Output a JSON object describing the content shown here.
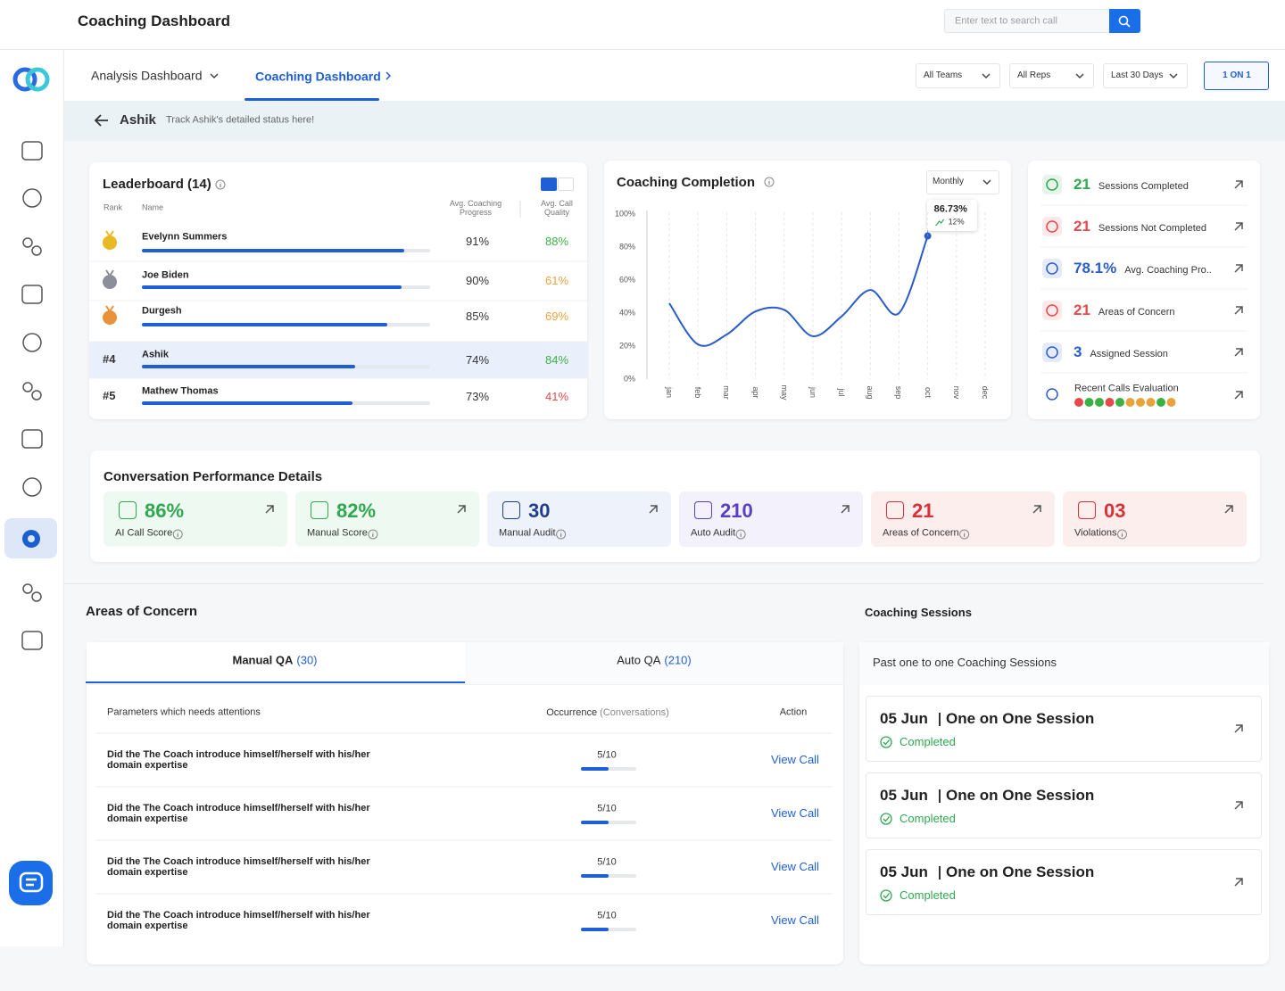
{
  "header": {
    "title": "Coaching Dashboard",
    "search_placeholder": "Enter text to search call"
  },
  "nav_tabs": [
    "Analysis Dashboard",
    "Coaching Dashboard"
  ],
  "filters": [
    "All Teams",
    "All Reps",
    "Last 30 Days"
  ],
  "action_button": "1 ON 1",
  "breadcrumb": {
    "name": "Ashik",
    "subtitle": "Track Ashik's detailed status here!"
  },
  "leaderboard": {
    "title": "Leaderboard (14)",
    "columns": [
      "Rank",
      "Name",
      "Avg. Coaching Progress",
      "Avg. Call Quality"
    ],
    "rows": [
      {
        "medal": "#e8b923",
        "name": "Evelynn Summers",
        "progress": 91,
        "progress_label": "91%",
        "quality": 88,
        "quality_label": "88%",
        "quality_color": "#3cb043"
      },
      {
        "medal": "#8a8f99",
        "name": "Joe Biden",
        "progress": 90,
        "progress_label": "90%",
        "quality": 61,
        "quality_label": "61%",
        "quality_color": "#e8a33d"
      },
      {
        "medal": "#e8923a",
        "name": "Durgesh",
        "progress": 85,
        "progress_label": "85%",
        "quality": 69,
        "quality_label": "69%",
        "quality_color": "#e8a33d"
      },
      {
        "rank": "#4",
        "name": "Ashik",
        "progress": 74,
        "progress_label": "74%",
        "quality": 84,
        "quality_label": "84%",
        "quality_color": "#3cb043",
        "highlighted": true
      },
      {
        "rank": "#5",
        "name": "Mathew Thomas",
        "progress": 73,
        "progress_label": "73%",
        "quality": 41,
        "quality_label": "41%",
        "quality_color": "#e5484d"
      }
    ]
  },
  "coaching_completion": {
    "type": "line",
    "title": "Coaching Completion",
    "period": "Monthly",
    "categories": [
      "jan",
      "feb",
      "mar",
      "apr",
      "may",
      "jun",
      "jul",
      "aug",
      "sep",
      "oct",
      "nov",
      "dec"
    ],
    "values": [
      46,
      21,
      27,
      41,
      42,
      26,
      38,
      54,
      40,
      86.73,
      null,
      null
    ],
    "value_labels": [
      null,
      null,
      null,
      null,
      null,
      null,
      null,
      null,
      null,
      "86.73%",
      null,
      null
    ],
    "change": 12,
    "change_label": "12%",
    "color": "#2a5cc9",
    "ylim": [
      0,
      100
    ],
    "yticks": [
      {
        "value": 0,
        "label": "0%"
      },
      {
        "value": 20,
        "label": "20%"
      },
      {
        "value": 40,
        "label": "40%"
      },
      {
        "value": 60,
        "label": "60%"
      },
      {
        "value": 80,
        "label": "80%"
      },
      {
        "value": 100,
        "label": "100%"
      }
    ]
  },
  "stats": [
    {
      "value": 21,
      "label": "Sessions Completed",
      "color": "#2fa84f"
    },
    {
      "value": 21,
      "label": "Sessions Not Completed",
      "color": "#e5484d"
    },
    {
      "value": 78.1,
      "value_label": "78.1%",
      "label": "Avg. Coaching Pro..",
      "color": "#2a5cc9"
    },
    {
      "value": 21,
      "label": "Areas of Concern",
      "color": "#e5484d"
    },
    {
      "value": 3,
      "label": "Assigned Session",
      "color": "#2a5cc9"
    }
  ],
  "recent_calls": {
    "label": "Recent Calls Evaluation",
    "dots": [
      "#e5484d",
      "#3cb043",
      "#3cb043",
      "#e5484d",
      "#3cb043",
      "#e8a33d",
      "#e8a33d",
      "#e8a33d",
      "#3cb043",
      "#e8a33d"
    ]
  },
  "performance": {
    "title": "Conversation Performance Details",
    "cards": [
      {
        "value": 86,
        "value_label": "86%",
        "label": "AI Call Score",
        "color": "#2fa84f",
        "bg": "#eef9f1"
      },
      {
        "value": 82,
        "value_label": "82%",
        "label": "Manual Score",
        "color": "#2fa84f",
        "bg": "#eef9f1"
      },
      {
        "value": 30,
        "label": "Manual Audit",
        "color": "#1f3f8a",
        "bg": "#eef3fb"
      },
      {
        "value": 210,
        "label": "Auto Audit",
        "color": "#5a3fbf",
        "bg": "#f3f1fb"
      },
      {
        "value": 21,
        "label": "Areas of Concern",
        "color": "#d93036",
        "bg": "#fdeeee"
      },
      {
        "value": 3,
        "value_label": "03",
        "label": "Violations",
        "color": "#d93036",
        "bg": "#fdeeee"
      }
    ]
  },
  "areas_of_concern": {
    "title": "Areas of Concern",
    "tabs": [
      {
        "name": "Manual QA",
        "count": 30,
        "count_label": "(30)"
      },
      {
        "name": "Auto QA",
        "count": 210,
        "count_label": "(210)"
      }
    ],
    "columns": [
      "Parameters which needs attentions",
      "Occurrence",
      "(Conversations)",
      "Action"
    ],
    "rows": [
      {
        "text": "Did the The Coach introduce himself/herself with his/her domain expertise",
        "count": 5,
        "total": 10,
        "occurrence_label": "5/10",
        "action": "View Call"
      },
      {
        "text": "Did the The Coach introduce himself/herself with his/her domain expertise",
        "count": 5,
        "total": 10,
        "occurrence_label": "5/10",
        "action": "View Call"
      },
      {
        "text": "Did the The Coach introduce himself/herself with his/her domain expertise",
        "count": 5,
        "total": 10,
        "occurrence_label": "5/10",
        "action": "View Call"
      },
      {
        "text": "Did the The Coach introduce himself/herself with his/her domain expertise",
        "count": 5,
        "total": 10,
        "occurrence_label": "5/10",
        "action": "View Call"
      }
    ]
  },
  "coaching_sessions": {
    "title": "Coaching Sessions",
    "subtitle": "Past one to one Coaching Sessions",
    "items": [
      {
        "date": "05 Jun",
        "name": "One on One Session",
        "status": "Completed"
      },
      {
        "date": "05 Jun",
        "name": "One on One Session",
        "status": "Completed"
      },
      {
        "date": "05 Jun",
        "name": "One on One Session",
        "status": "Completed"
      }
    ]
  }
}
